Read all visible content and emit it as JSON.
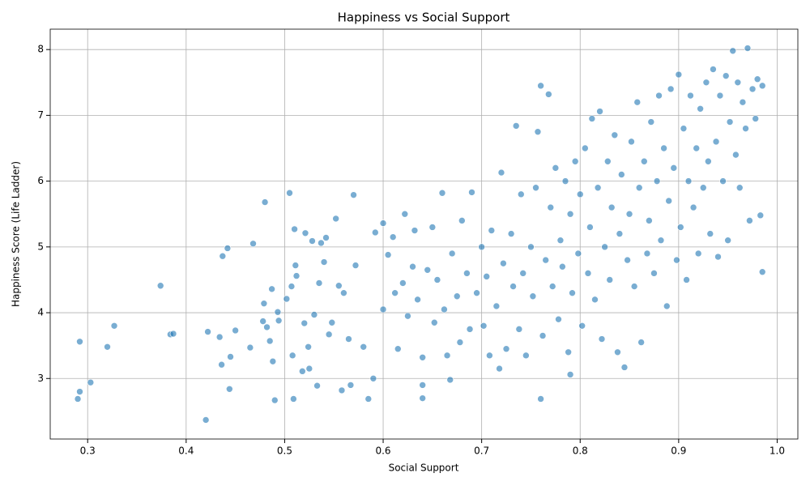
{
  "chart_data": {
    "type": "scatter",
    "title": "Happiness vs Social Support",
    "xlabel": "Social Support",
    "ylabel": "Happiness Score (Life Ladder)",
    "color": "#1f77b4",
    "grid": true,
    "xlim": [
      0.262,
      1.021
    ],
    "ylim": [
      2.08,
      8.31
    ],
    "xticks": [
      0.3,
      0.4,
      0.5,
      0.6,
      0.7,
      0.8,
      0.9,
      {
        "value": 1,
        "label": "1.0"
      }
    ],
    "yticks": [
      3,
      4,
      5,
      6,
      7,
      8
    ],
    "x": [
      0.29,
      0.292,
      0.292,
      0.303,
      0.32,
      0.327,
      0.374,
      0.384,
      0.387,
      0.42,
      0.422,
      0.434,
      0.436,
      0.437,
      0.442,
      0.444,
      0.445,
      0.45,
      0.465,
      0.468,
      0.478,
      0.479,
      0.48,
      0.482,
      0.485,
      0.487,
      0.488,
      0.49,
      0.493,
      0.494,
      0.502,
      0.505,
      0.507,
      0.508,
      0.509,
      0.51,
      0.511,
      0.512,
      0.518,
      0.52,
      0.521,
      0.524,
      0.525,
      0.528,
      0.53,
      0.533,
      0.535,
      0.537,
      0.54,
      0.542,
      0.545,
      0.548,
      0.552,
      0.555,
      0.558,
      0.56,
      0.565,
      0.567,
      0.57,
      0.572,
      0.58,
      0.585,
      0.59,
      0.592,
      0.6,
      0.6,
      0.605,
      0.61,
      0.612,
      0.615,
      0.62,
      0.622,
      0.625,
      0.63,
      0.632,
      0.635,
      0.64,
      0.64,
      0.64,
      0.645,
      0.65,
      0.652,
      0.655,
      0.66,
      0.662,
      0.665,
      0.668,
      0.67,
      0.675,
      0.678,
      0.68,
      0.685,
      0.688,
      0.69,
      0.695,
      0.7,
      0.702,
      0.705,
      0.708,
      0.71,
      0.715,
      0.718,
      0.72,
      0.722,
      0.725,
      0.73,
      0.732,
      0.735,
      0.738,
      0.74,
      0.742,
      0.745,
      0.75,
      0.752,
      0.755,
      0.757,
      0.76,
      0.76,
      0.762,
      0.765,
      0.768,
      0.77,
      0.772,
      0.775,
      0.778,
      0.78,
      0.782,
      0.785,
      0.788,
      0.79,
      0.79,
      0.792,
      0.795,
      0.798,
      0.8,
      0.802,
      0.805,
      0.808,
      0.81,
      0.812,
      0.815,
      0.818,
      0.82,
      0.822,
      0.825,
      0.828,
      0.83,
      0.832,
      0.835,
      0.838,
      0.84,
      0.842,
      0.845,
      0.848,
      0.85,
      0.852,
      0.855,
      0.858,
      0.86,
      0.862,
      0.865,
      0.868,
      0.87,
      0.872,
      0.875,
      0.878,
      0.88,
      0.882,
      0.885,
      0.888,
      0.89,
      0.892,
      0.895,
      0.898,
      0.9,
      0.902,
      0.905,
      0.908,
      0.91,
      0.912,
      0.915,
      0.918,
      0.92,
      0.922,
      0.925,
      0.928,
      0.93,
      0.932,
      0.935,
      0.938,
      0.94,
      0.942,
      0.945,
      0.948,
      0.95,
      0.952,
      0.955,
      0.958,
      0.96,
      0.962,
      0.965,
      0.968,
      0.97,
      0.972,
      0.975,
      0.978,
      0.98,
      0.983,
      0.985,
      0.985
    ],
    "values": [
      2.69,
      2.8,
      3.56,
      2.94,
      3.48,
      3.8,
      4.41,
      3.67,
      3.68,
      2.37,
      3.71,
      3.63,
      3.21,
      4.86,
      4.98,
      2.84,
      3.33,
      3.73,
      3.47,
      5.05,
      3.87,
      4.14,
      5.68,
      3.78,
      3.57,
      4.36,
      3.26,
      2.67,
      4.01,
      3.88,
      4.21,
      5.82,
      4.4,
      3.35,
      2.69,
      5.27,
      4.72,
      4.56,
      3.11,
      3.84,
      5.21,
      3.48,
      3.15,
      5.09,
      3.97,
      2.89,
      4.45,
      5.06,
      4.77,
      5.14,
      3.67,
      3.85,
      5.43,
      4.41,
      2.82,
      4.3,
      3.6,
      2.9,
      5.79,
      4.72,
      3.48,
      2.69,
      3.0,
      5.22,
      5.36,
      4.05,
      4.88,
      5.15,
      4.3,
      3.45,
      4.45,
      5.5,
      3.95,
      4.7,
      5.25,
      4.2,
      3.32,
      2.9,
      2.7,
      4.65,
      5.3,
      3.85,
      4.5,
      5.82,
      4.05,
      3.35,
      2.98,
      4.9,
      4.25,
      3.55,
      5.4,
      4.6,
      3.75,
      5.83,
      4.3,
      5.0,
      3.8,
      4.55,
      3.35,
      5.25,
      4.1,
      3.15,
      6.13,
      4.75,
      3.45,
      5.2,
      4.4,
      6.84,
      3.75,
      5.8,
      4.6,
      3.35,
      5.0,
      4.25,
      5.9,
      6.75,
      7.45,
      2.69,
      3.65,
      4.8,
      7.32,
      5.6,
      4.4,
      6.2,
      3.9,
      5.1,
      4.7,
      6.0,
      3.4,
      3.06,
      5.5,
      4.3,
      6.3,
      4.9,
      5.8,
      3.8,
      6.5,
      4.6,
      5.3,
      6.95,
      4.2,
      5.9,
      7.06,
      3.6,
      5.0,
      6.3,
      4.5,
      5.6,
      6.7,
      3.4,
      5.2,
      6.1,
      3.17,
      4.8,
      5.5,
      6.6,
      4.4,
      7.2,
      5.9,
      3.55,
      6.3,
      4.9,
      5.4,
      6.9,
      4.6,
      6.0,
      7.3,
      5.1,
      6.5,
      4.1,
      5.7,
      7.4,
      6.2,
      4.8,
      7.62,
      5.3,
      6.8,
      4.5,
      6.0,
      7.3,
      5.6,
      6.5,
      4.9,
      7.1,
      5.9,
      7.5,
      6.3,
      5.2,
      7.7,
      6.6,
      4.85,
      7.3,
      6.0,
      7.6,
      5.1,
      6.9,
      7.98,
      6.4,
      7.5,
      5.9,
      7.2,
      6.8,
      8.02,
      5.4,
      7.4,
      6.95,
      7.55,
      5.48,
      4.62,
      7.45
    ]
  }
}
